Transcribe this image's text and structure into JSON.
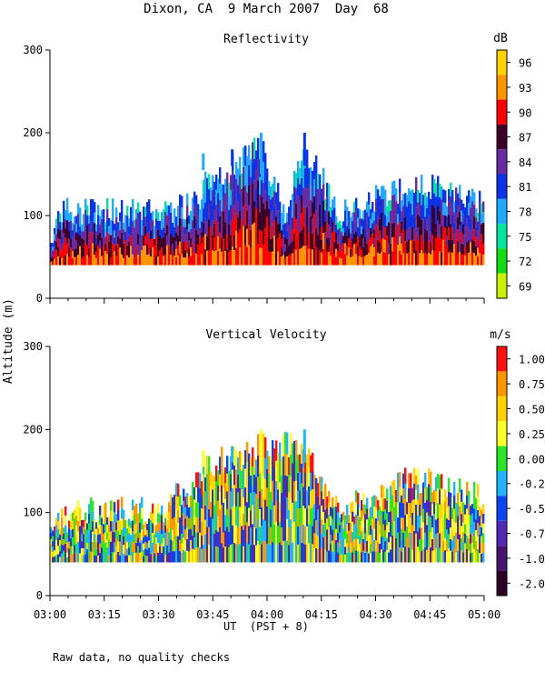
{
  "page": {
    "title": "Dixon, CA  9 March 2007  Day  68",
    "footer_note": "Raw data, no quality checks"
  },
  "chart_data": [
    {
      "type": "heatmap",
      "title": "Reflectivity",
      "ylabel": "Altitude (m)",
      "xlabel": "UT  (PST + 8)",
      "ylim": [
        0,
        300
      ],
      "yticks": [
        0,
        100,
        200,
        300
      ],
      "xlim_minutes": [
        0,
        120
      ],
      "xticks": [
        "03:00",
        "03:15",
        "03:30",
        "03:45",
        "04:00",
        "04:15",
        "04:30",
        "04:45",
        "05:00"
      ],
      "colorbar": {
        "unit": "dB",
        "labels": [
          "96",
          "93",
          "90",
          "87",
          "84",
          "81",
          "78",
          "75",
          "72",
          "69"
        ],
        "colors": [
          "#ffd200",
          "#ff9600",
          "#ff0000",
          "#3c0028",
          "#6a2aa0",
          "#0a32e6",
          "#1eaaff",
          "#00e6a0",
          "#14dc14",
          "#c8f000"
        ]
      },
      "echo_tops_m": [
        {
          "time": "03:00",
          "top": 90
        },
        {
          "time": "03:02",
          "top": 120
        },
        {
          "time": "03:10",
          "top": 125
        },
        {
          "time": "03:20",
          "top": 120
        },
        {
          "time": "03:30",
          "top": 120
        },
        {
          "time": "03:40",
          "top": 130
        },
        {
          "time": "03:44",
          "top": 165
        },
        {
          "time": "03:50",
          "top": 175
        },
        {
          "time": "03:58",
          "top": 200
        },
        {
          "time": "04:05",
          "top": 120
        },
        {
          "time": "04:10",
          "top": 200
        },
        {
          "time": "04:20",
          "top": 120
        },
        {
          "time": "04:40",
          "top": 155
        },
        {
          "time": "05:00",
          "top": 135
        }
      ]
    },
    {
      "type": "heatmap",
      "title": "Vertical Velocity",
      "ylabel": "Altitude (m)",
      "xlabel": "UT  (PST + 8)",
      "ylim": [
        0,
        300
      ],
      "yticks": [
        0,
        100,
        200,
        300
      ],
      "xlim_minutes": [
        0,
        120
      ],
      "xticks": [
        "03:00",
        "03:15",
        "03:30",
        "03:45",
        "04:00",
        "04:15",
        "04:30",
        "04:45",
        "05:00"
      ],
      "colorbar": {
        "unit": "m/s",
        "labels": [
          "1.00",
          "0.75",
          "0.50",
          "0.25",
          "0.00",
          "-0.25",
          "-0.50",
          "-0.75",
          "-1.00",
          "-2.00"
        ],
        "colors": [
          "#ff1010",
          "#ff9600",
          "#ffd200",
          "#ffff28",
          "#28e628",
          "#1eb4ff",
          "#0a46f0",
          "#5028b4",
          "#46146e",
          "#2d0028"
        ]
      },
      "echo_tops_m": [
        {
          "time": "03:00",
          "top": 100
        },
        {
          "time": "03:10",
          "top": 120
        },
        {
          "time": "03:30",
          "top": 120
        },
        {
          "time": "03:44",
          "top": 175
        },
        {
          "time": "03:58",
          "top": 200
        },
        {
          "time": "04:10",
          "top": 200
        },
        {
          "time": "04:20",
          "top": 120
        },
        {
          "time": "04:40",
          "top": 160
        },
        {
          "time": "05:00",
          "top": 135
        }
      ]
    }
  ]
}
